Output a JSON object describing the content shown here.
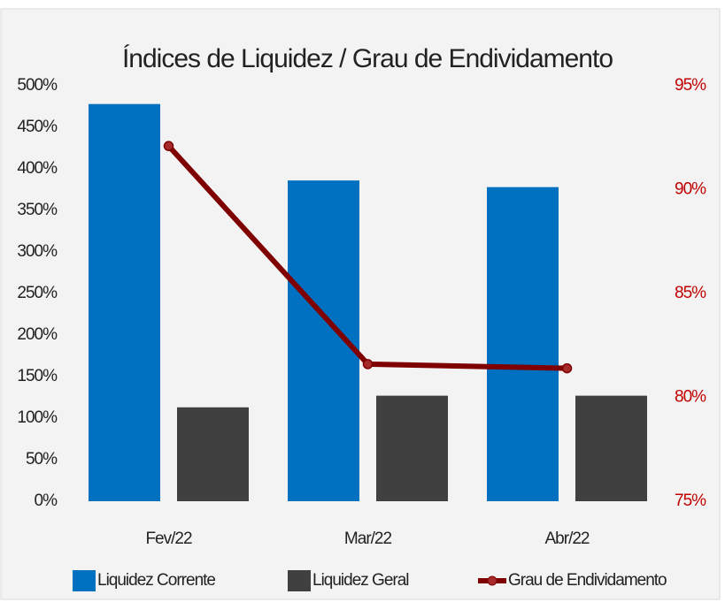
{
  "chart_data": {
    "type": "bar",
    "title": "Índices de Liquidez / Grau de Endividamento",
    "categories": [
      "Fev/22",
      "Mar/22",
      "Abr/22"
    ],
    "series": [
      {
        "name": "Liquidez Corrente",
        "color": "#0070c0",
        "values": [
          478,
          386,
          378
        ]
      },
      {
        "name": "Liquidez Geral",
        "color": "#404040",
        "values": [
          113,
          127,
          127
        ]
      },
      {
        "name": "Grau de Endividamento",
        "color": "#7f0000",
        "type": "line",
        "axis": "y2",
        "values": [
          92.1,
          81.6,
          81.4
        ]
      }
    ],
    "ylim": [
      0,
      500
    ],
    "yticks": [
      {
        "value": 0,
        "label": "0%"
      },
      {
        "value": 50,
        "label": "50%"
      },
      {
        "value": 100,
        "label": "100%"
      },
      {
        "value": 150,
        "label": "150%"
      },
      {
        "value": 200,
        "label": "200%"
      },
      {
        "value": 250,
        "label": "250%"
      },
      {
        "value": 300,
        "label": "300%"
      },
      {
        "value": 350,
        "label": "350%"
      },
      {
        "value": 400,
        "label": "400%"
      },
      {
        "value": 450,
        "label": "450%"
      },
      {
        "value": 500,
        "label": "500%"
      }
    ],
    "y2lim": [
      75,
      95
    ],
    "y2ticks": [
      {
        "value": 75,
        "label": "75%"
      },
      {
        "value": 80,
        "label": "80%"
      },
      {
        "value": 85,
        "label": "85%"
      },
      {
        "value": 90,
        "label": "90%"
      },
      {
        "value": 95,
        "label": "95%"
      }
    ],
    "y2tick_color": "#c00000",
    "legend": "bottom",
    "grid": false
  }
}
